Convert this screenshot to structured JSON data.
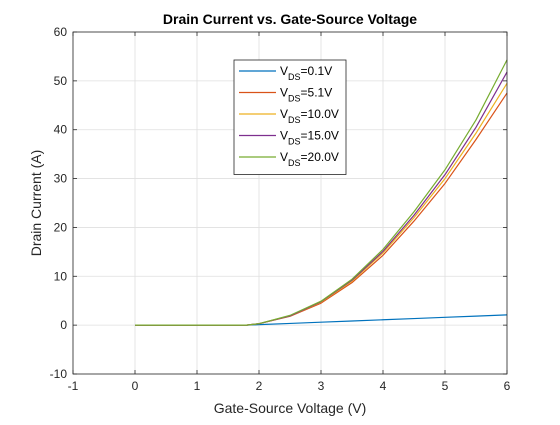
{
  "chart_data": {
    "type": "line",
    "title": "Drain Current vs. Gate-Source Voltage",
    "xlabel": "Gate-Source Voltage (V)",
    "ylabel": "Drain Current (A)",
    "xlim": [
      -1,
      6
    ],
    "ylim": [
      -10,
      60
    ],
    "xticks": [
      "-1",
      "0",
      "1",
      "2",
      "3",
      "4",
      "5",
      "6"
    ],
    "yticks": [
      "-10",
      "0",
      "10",
      "20",
      "30",
      "40",
      "50",
      "60"
    ],
    "grid": true,
    "legend_position": "top-center",
    "x": [
      0,
      0.5,
      1,
      1.5,
      1.8,
      2,
      2.5,
      3,
      3.5,
      4,
      4.5,
      5,
      5.5,
      6
    ],
    "series": [
      {
        "name": "V_DS=0.1V",
        "legend_main": "V",
        "legend_sub": "DS",
        "legend_rest": "=0.1V",
        "color": "#0072BD",
        "values": [
          0,
          0,
          0,
          0,
          0,
          0.1,
          0.35,
          0.6,
          0.85,
          1.1,
          1.35,
          1.6,
          1.85,
          2.1
        ]
      },
      {
        "name": "V_DS=5.1V",
        "legend_main": "V",
        "legend_sub": "DS",
        "legend_rest": "=5.1V",
        "color": "#D95319",
        "values": [
          0,
          0,
          0,
          0,
          0,
          0.3,
          1.8,
          4.5,
          8.7,
          14.3,
          21.3,
          29.0,
          38.0,
          47.5
        ]
      },
      {
        "name": "V_DS=10.0V",
        "legend_main": "V",
        "legend_sub": "DS",
        "legend_rest": "=10.0V",
        "color": "#EDB120",
        "values": [
          0,
          0,
          0,
          0,
          0,
          0.3,
          1.9,
          4.7,
          9.0,
          14.8,
          22.0,
          30.0,
          39.3,
          49.5
        ]
      },
      {
        "name": "V_DS=15.0V",
        "legend_main": "V",
        "legend_sub": "DS",
        "legend_rest": "=15.0V",
        "color": "#7E2F8E",
        "values": [
          0,
          0,
          0,
          0,
          0,
          0.3,
          1.9,
          4.8,
          9.2,
          15.1,
          22.5,
          30.8,
          40.5,
          51.8
        ]
      },
      {
        "name": "V_DS=20.0V",
        "legend_main": "V",
        "legend_sub": "DS",
        "legend_rest": "=20.0V",
        "color": "#77AC30",
        "values": [
          0,
          0,
          0,
          0,
          0,
          0.3,
          2.0,
          4.9,
          9.4,
          15.5,
          23.2,
          31.8,
          42.0,
          54.3
        ]
      }
    ]
  }
}
